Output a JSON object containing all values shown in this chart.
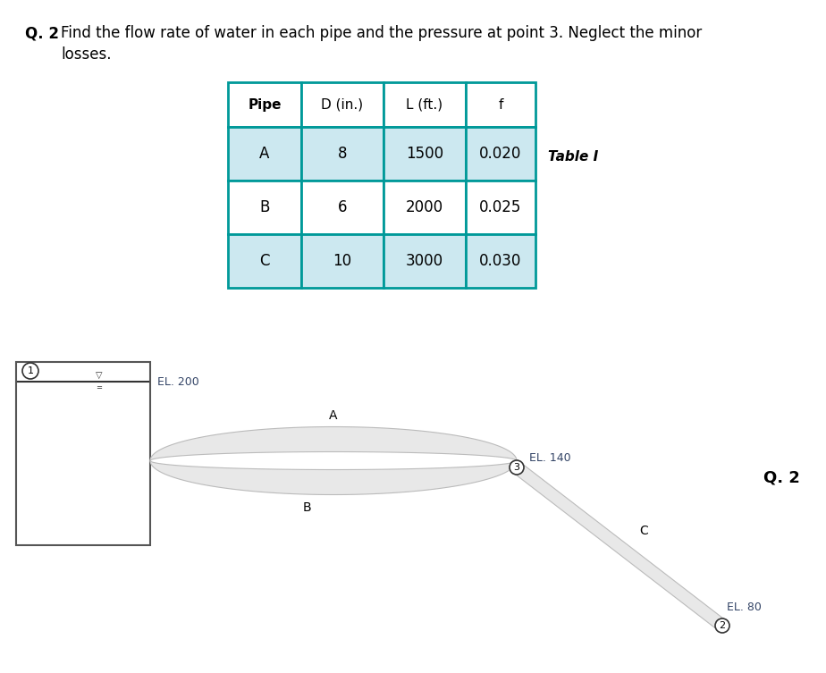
{
  "title_bold": "Q. 2",
  "title_rest": "  Find the flow rate of water in each pipe and the pressure at point 3. Neglect the minor",
  "subtitle_text": "        losses.",
  "table_headers": [
    "Pipe",
    "D (in.)",
    "L (ft.)",
    "f"
  ],
  "table_rows": [
    [
      "A",
      "8",
      "1500",
      "0.020"
    ],
    [
      "B",
      "6",
      "2000",
      "0.025"
    ],
    [
      "C",
      "10",
      "3000",
      "0.030"
    ]
  ],
  "table_label": "Table I",
  "table_header_bg": "#ffffff",
  "table_row_bg_odd": "#cce8f0",
  "table_row_bg_even": "#ffffff",
  "table_border_color": "#009999",
  "diagram_label_q2": "Q. 2",
  "node1_label": "1",
  "node2_label": "2",
  "node3_label": "3",
  "el200_label": "EL. 200",
  "el140_label": "EL. 140",
  "el80_label": "EL. 80",
  "pipe_a_label": "A",
  "pipe_b_label": "B",
  "pipe_c_label": "C",
  "bg_color": "#ffffff",
  "text_color": "#000000",
  "pipe_fill_color": "#e8e8e8",
  "pipe_edge_color": "#bbbbbb",
  "box_border_color": "#555555"
}
